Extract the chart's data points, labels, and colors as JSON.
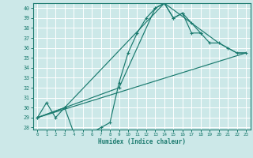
{
  "xlabel": "Humidex (Indice chaleur)",
  "bg_color": "#cce8e8",
  "grid_color": "#ffffff",
  "line_color": "#1a7a6e",
  "xlim": [
    -0.5,
    23.5
  ],
  "ylim": [
    27.8,
    40.5
  ],
  "xticks": [
    0,
    1,
    2,
    3,
    4,
    5,
    6,
    7,
    8,
    9,
    10,
    11,
    12,
    13,
    14,
    15,
    16,
    17,
    18,
    19,
    20,
    21,
    22,
    23
  ],
  "yticks": [
    28,
    29,
    30,
    31,
    32,
    33,
    34,
    35,
    36,
    37,
    38,
    39,
    40
  ],
  "line1_x": [
    0,
    1,
    2,
    3,
    4,
    5,
    6,
    7,
    8,
    9,
    10,
    11,
    12,
    13,
    14,
    15,
    16,
    17,
    18
  ],
  "line1_y": [
    29.0,
    30.5,
    29.0,
    30.0,
    27.5,
    27.5,
    27.5,
    28.0,
    28.5,
    32.5,
    35.5,
    37.5,
    39.0,
    40.0,
    40.5,
    39.0,
    39.5,
    38.5,
    37.5
  ],
  "line2_x": [
    0,
    3,
    9,
    13,
    14,
    15,
    16,
    17,
    18,
    19,
    20,
    21,
    22,
    23
  ],
  "line2_y": [
    29.0,
    30.0,
    32.0,
    40.0,
    40.5,
    39.0,
    39.5,
    37.5,
    37.5,
    36.5,
    36.5,
    36.0,
    35.5,
    35.5
  ],
  "line3_x": [
    0,
    3,
    14,
    20,
    21,
    22,
    23
  ],
  "line3_y": [
    29.0,
    30.0,
    40.5,
    36.5,
    36.0,
    35.5,
    35.5
  ],
  "line4_x": [
    0,
    23
  ],
  "line4_y": [
    29.0,
    35.5
  ]
}
